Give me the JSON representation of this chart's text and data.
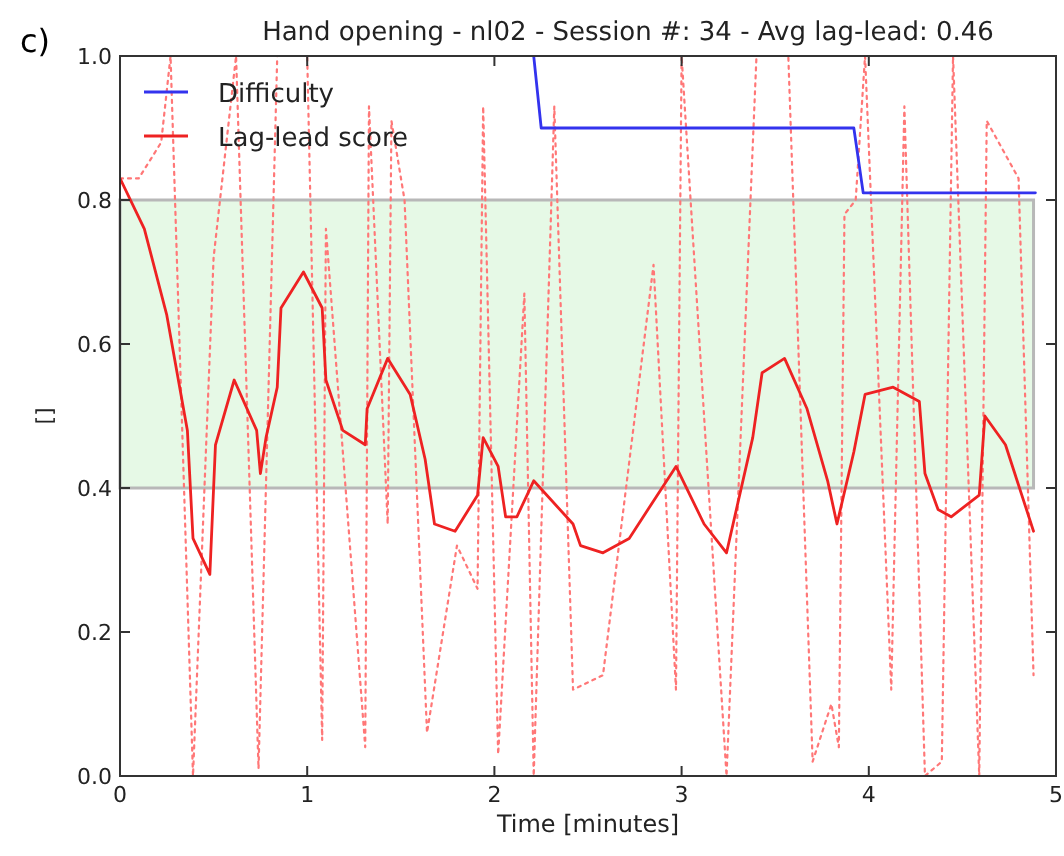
{
  "chart_data": {
    "type": "line",
    "title": "Hand opening - nl02 - Session #: 34 - Avg lag-lead: 0.46",
    "xlabel": "Time [minutes]",
    "ylabel": "[]",
    "annotations": [
      "c)"
    ],
    "xlim": [
      0,
      5
    ],
    "xticks": [
      0,
      1,
      2,
      3,
      4,
      5
    ],
    "ylim": [
      0,
      1
    ],
    "yticks": [
      {
        "value": 0,
        "label": "0.0"
      },
      {
        "value": 0.2,
        "label": "0.2"
      },
      {
        "value": 0.4,
        "label": "0.4"
      },
      {
        "value": 0.6,
        "label": "0.6"
      },
      {
        "value": 0.8,
        "label": "0.8"
      },
      {
        "value": 1,
        "label": "1.0"
      }
    ],
    "grid": false,
    "legend": "top left",
    "bands": [
      {
        "axis": "y",
        "from": 0.4,
        "to": 0.8,
        "color": "#e6f9e6"
      }
    ],
    "series": [
      {
        "color": "#ff7777",
        "line_style": "dotted",
        "x": [
          0,
          0.1,
          0.22,
          0.27,
          0.39,
          0.5,
          0.62,
          0.74,
          0.84,
          1.0,
          1.08,
          1.1,
          1.31,
          1.33,
          1.43,
          1.45,
          1.52,
          1.64,
          1.8,
          1.91,
          1.94,
          2.02,
          2.16,
          2.21,
          2.32,
          2.42,
          2.58,
          2.85,
          2.97,
          3.0,
          3.24,
          3.4,
          3.57,
          3.7,
          3.8,
          3.84,
          3.87,
          3.93,
          3.98,
          4.12,
          4.19,
          4.3,
          4.39,
          4.45,
          4.59,
          4.63,
          4.8,
          4.88
        ],
        "values": [
          0.83,
          0.83,
          0.88,
          1.0,
          0.0,
          0.72,
          1.0,
          0.01,
          1.0,
          1.0,
          0.05,
          0.76,
          0.04,
          0.93,
          0.35,
          0.91,
          0.8,
          0.06,
          0.32,
          0.26,
          0.93,
          0.03,
          0.67,
          0.0,
          0.93,
          0.12,
          0.14,
          0.71,
          0.12,
          1.0,
          0.0,
          1.0,
          1.0,
          0.02,
          0.1,
          0.04,
          0.78,
          0.8,
          1.0,
          0.12,
          0.93,
          0.0,
          0.02,
          1.0,
          0.0,
          0.91,
          0.83,
          0.14
        ]
      },
      {
        "name": "Difficulty",
        "color": "#3333ee",
        "line_style": "solid",
        "x": [
          2.21,
          2.25,
          3.92,
          3.97,
          4.89
        ],
        "values": [
          1.0,
          0.9,
          0.9,
          0.81,
          0.81
        ]
      },
      {
        "name": "Lag-lead score",
        "color": "#ee2222",
        "line_style": "solid",
        "x": [
          0,
          0.13,
          0.25,
          0.36,
          0.39,
          0.48,
          0.51,
          0.61,
          0.73,
          0.75,
          0.78,
          0.84,
          0.86,
          0.98,
          1.08,
          1.1,
          1.19,
          1.31,
          1.32,
          1.43,
          1.55,
          1.63,
          1.68,
          1.79,
          1.91,
          1.94,
          2.02,
          2.06,
          2.12,
          2.21,
          2.42,
          2.46,
          2.58,
          2.72,
          2.97,
          3.12,
          3.24,
          3.38,
          3.43,
          3.55,
          3.67,
          3.78,
          3.83,
          3.92,
          3.98,
          4.13,
          4.27,
          4.3,
          4.37,
          4.44,
          4.59,
          4.62,
          4.73,
          4.88
        ],
        "values": [
          0.83,
          0.76,
          0.64,
          0.48,
          0.33,
          0.28,
          0.46,
          0.55,
          0.48,
          0.42,
          0.47,
          0.54,
          0.65,
          0.7,
          0.65,
          0.55,
          0.48,
          0.46,
          0.51,
          0.58,
          0.53,
          0.44,
          0.35,
          0.34,
          0.39,
          0.47,
          0.43,
          0.36,
          0.36,
          0.41,
          0.35,
          0.32,
          0.31,
          0.33,
          0.43,
          0.35,
          0.31,
          0.47,
          0.56,
          0.58,
          0.51,
          0.41,
          0.35,
          0.45,
          0.53,
          0.54,
          0.52,
          0.42,
          0.37,
          0.36,
          0.39,
          0.5,
          0.46,
          0.34
        ]
      }
    ]
  }
}
